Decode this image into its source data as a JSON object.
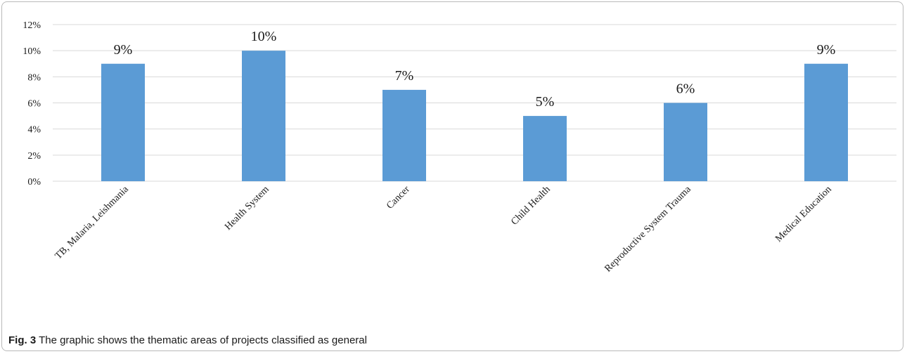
{
  "caption": {
    "label": "Fig. 3",
    "text": " The graphic shows the thematic areas of projects classified as general"
  },
  "colors": {
    "bar": "#5b9bd5",
    "grid": "#d9d9d9",
    "text": "#1a1a1a"
  },
  "chart_data": {
    "type": "bar",
    "title": "",
    "xlabel": "",
    "ylabel": "",
    "categories": [
      "TB, Malaria, Leishmania",
      "Health System",
      "Cancer",
      "Child Health",
      "Reproductive System Trauma",
      "Medical Education"
    ],
    "values": [
      9,
      10,
      7,
      5,
      6,
      9
    ],
    "data_labels": [
      "9%",
      "10%",
      "7%",
      "5%",
      "6%",
      "9%"
    ],
    "y_ticks": [
      0,
      2,
      4,
      6,
      8,
      10,
      12
    ],
    "y_tick_labels": [
      "0%",
      "2%",
      "4%",
      "6%",
      "8%",
      "10%",
      "12%"
    ],
    "ylim": [
      0,
      12
    ],
    "grid": true,
    "legend": "none"
  }
}
